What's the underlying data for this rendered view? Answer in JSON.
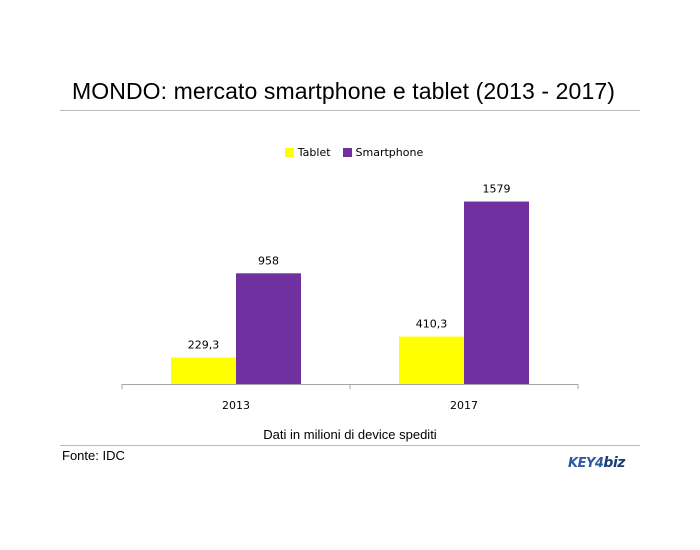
{
  "title": "MONDO: mercato smartphone e tablet (2013 - 2017)",
  "note": "Dati in milioni di device spediti",
  "source": "Fonte: IDC",
  "logo": {
    "part1": "KEY4",
    "part2": "biz"
  },
  "colors": {
    "tablet": "#ffff00",
    "smartphone": "#7030a0",
    "axis": "#a6a6a6"
  },
  "chart_data": {
    "type": "bar",
    "title": "MONDO: mercato smartphone e tablet (2013 - 2017)",
    "categories": [
      "2013",
      "2017"
    ],
    "series": [
      {
        "name": "Tablet",
        "values": [
          229.3,
          410.3
        ],
        "labels": [
          "229,3",
          "410,3"
        ],
        "color": "#ffff00"
      },
      {
        "name": "Smartphone",
        "values": [
          958,
          1579
        ],
        "labels": [
          "958",
          "1579"
        ],
        "color": "#7030a0"
      }
    ],
    "ylim": [
      0,
      1800
    ],
    "grid": false,
    "legend": "top-center",
    "xlabel": "Dati in milioni di device spediti",
    "ylabel": ""
  }
}
